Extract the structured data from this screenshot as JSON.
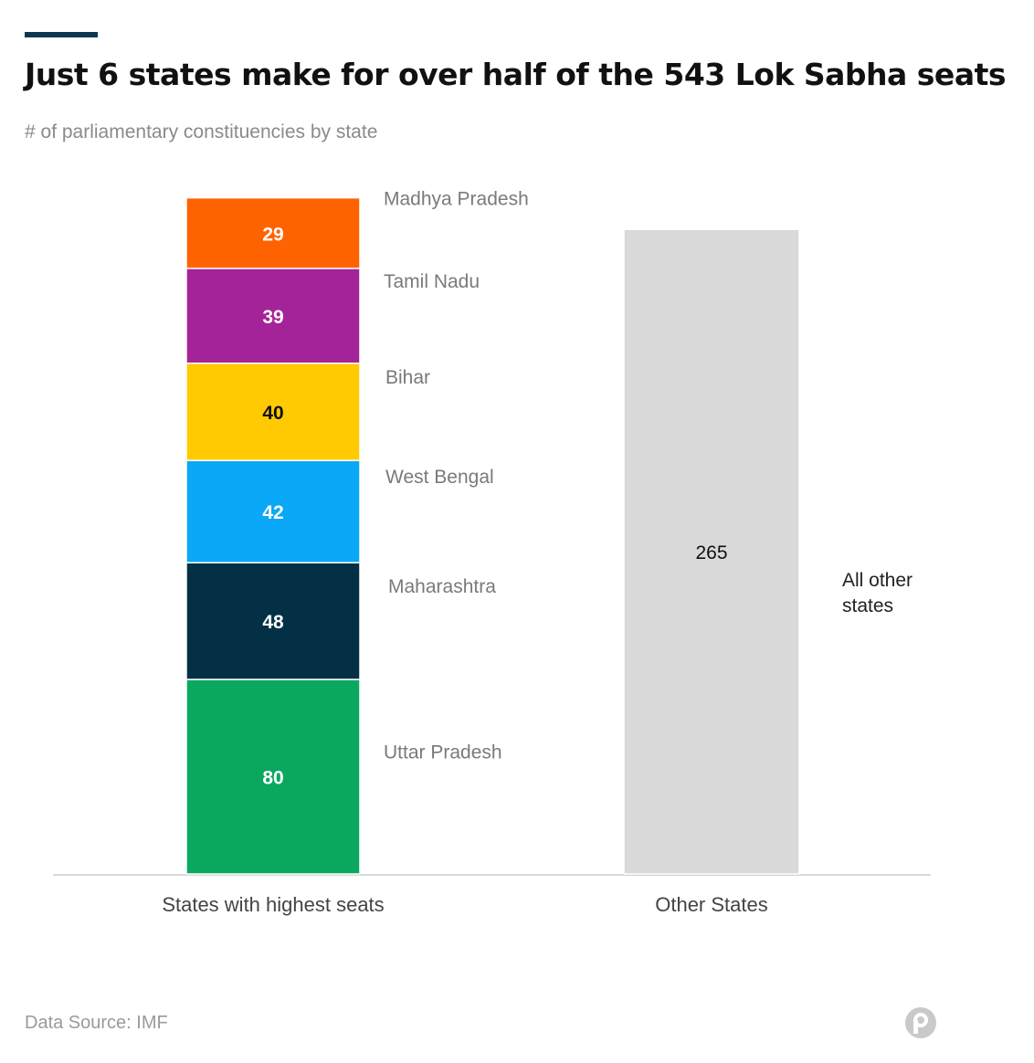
{
  "title": "Just 6 states make for over half of the 543 Lok Sabha seats",
  "subtitle": "# of parliamentary constituencies by state",
  "source": "Data Source: IMF",
  "logo_icon": "publisher-logo-icon",
  "chart_data": {
    "type": "bar",
    "stacked": true,
    "categories": [
      "States with highest seats",
      "Other States"
    ],
    "ylim": [
      0,
      285
    ],
    "grid": false,
    "series": [
      {
        "name": "Uttar Pradesh",
        "values": [
          80,
          null
        ],
        "color": "#0aa85e",
        "label_color": "#ffffff"
      },
      {
        "name": "Maharashtra",
        "values": [
          48,
          null
        ],
        "color": "#033045",
        "label_color": "#ffffff"
      },
      {
        "name": "West Bengal",
        "values": [
          42,
          null
        ],
        "color": "#0aa8f7",
        "label_color": "#ffffff"
      },
      {
        "name": "Bihar",
        "values": [
          40,
          null
        ],
        "color": "#ffca02",
        "label_color": "#111111"
      },
      {
        "name": "Tamil Nadu",
        "values": [
          39,
          null
        ],
        "color": "#a52398",
        "label_color": "#ffffff"
      },
      {
        "name": "Madhya Pradesh",
        "values": [
          29,
          null
        ],
        "color": "#ff6200",
        "label_color": "#ffffff"
      },
      {
        "name": "All other states",
        "values": [
          null,
          265
        ],
        "color": "#d9d9d9",
        "label_color": "#111111"
      }
    ]
  }
}
